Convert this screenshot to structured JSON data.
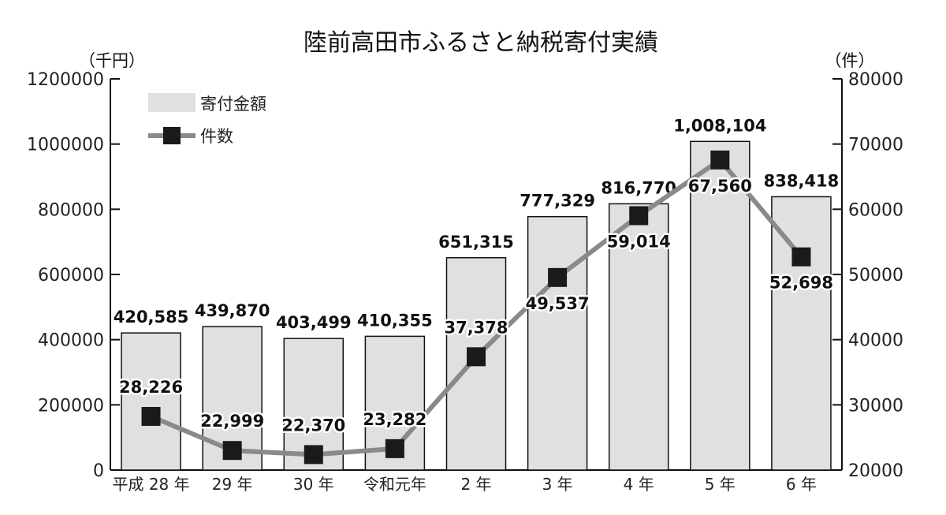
{
  "chart_data": {
    "type": "bar",
    "title": "陸前高田市ふるさと納税寄付実績",
    "y_left_unit": "（千円）",
    "y_right_unit": "（件）",
    "categories": [
      "平成 28 年",
      "29 年",
      "30 年",
      "令和元年",
      "2 年",
      "3 年",
      "4 年",
      "5 年",
      "6 年"
    ],
    "series": [
      {
        "name": "寄付金額",
        "type": "bar",
        "axis": "left",
        "values": [
          420585,
          439870,
          403499,
          410355,
          651315,
          777329,
          816770,
          1008104,
          838418
        ],
        "labels": [
          "420,585",
          "439,870",
          "403,499",
          "410,355",
          "651,315",
          "777,329",
          "816,770",
          "1,008,104",
          "838,418"
        ],
        "color": "#e0e0e0"
      },
      {
        "name": "件数",
        "type": "line",
        "axis": "right",
        "values": [
          28226,
          22999,
          22370,
          23282,
          37378,
          49537,
          59014,
          67560,
          52698
        ],
        "labels": [
          "28,226",
          "22,999",
          "22,370",
          "23,282",
          "37,378",
          "49,537",
          "59,014",
          "67,560",
          "52,698"
        ],
        "line_color": "#8a8a8a",
        "marker_color": "#1a1a1a"
      }
    ],
    "y_left": {
      "min": 0,
      "max": 1200000,
      "ticks": [
        "0",
        "200000",
        "400000",
        "600000",
        "800000",
        "1000000",
        "1200000"
      ]
    },
    "y_right": {
      "min": 20000,
      "max": 80000,
      "ticks": [
        "20000",
        "30000",
        "40000",
        "50000",
        "60000",
        "70000",
        "80000"
      ]
    },
    "grid": false,
    "legend": "top-left"
  }
}
